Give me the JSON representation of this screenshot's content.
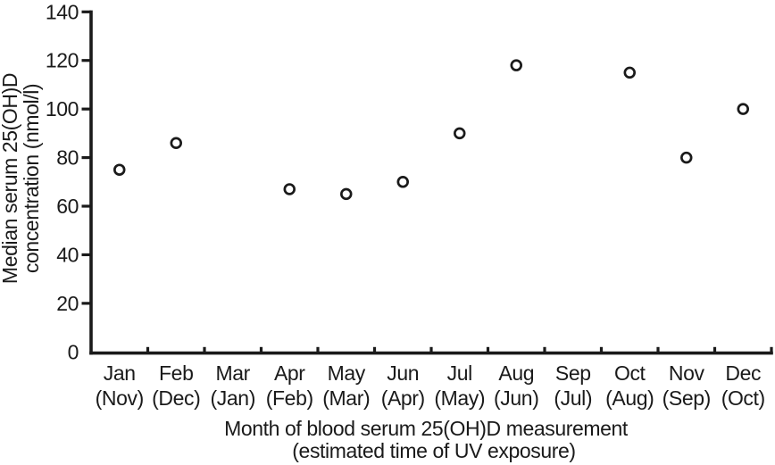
{
  "chart_data": {
    "type": "scatter",
    "title": "",
    "xlabel": "Month of blood serum 25(OH)D measurement (estimated time of UV exposure)",
    "xlabel_line1": "Month of blood serum 25(OH)D measurement",
    "xlabel_line2": "(estimated time of UV exposure)",
    "ylabel": "Median serum 25(OH)D concentration (nmol/l)",
    "ylabel_line1": "Median serum 25(OH)D",
    "ylabel_line2": "concentration (nmol/l)",
    "categories": [
      "Jan",
      "Feb",
      "Mar",
      "Apr",
      "May",
      "Jun",
      "Jul",
      "Aug",
      "Sep",
      "Oct",
      "Nov",
      "Dec"
    ],
    "category_sublabels": [
      "(Nov)",
      "(Dec)",
      "(Jan)",
      "(Feb)",
      "(Mar)",
      "(Apr)",
      "(May)",
      "(Jun)",
      "(Jul)",
      "(Aug)",
      "(Sep)",
      "(Oct)"
    ],
    "values": [
      75,
      86,
      null,
      67,
      65,
      70,
      90,
      118,
      null,
      115,
      80,
      100
    ],
    "ylim": [
      0,
      140
    ],
    "yticks": [
      0,
      20,
      40,
      60,
      80,
      100,
      120,
      140
    ],
    "marker": "open-circle",
    "grid": false,
    "legend": false,
    "colors": {
      "axis": "#1a1a1a",
      "text": "#1a1a1a",
      "marker_stroke": "#1a1a1a",
      "marker_fill": "#ffffff",
      "background": "#ffffff"
    }
  }
}
